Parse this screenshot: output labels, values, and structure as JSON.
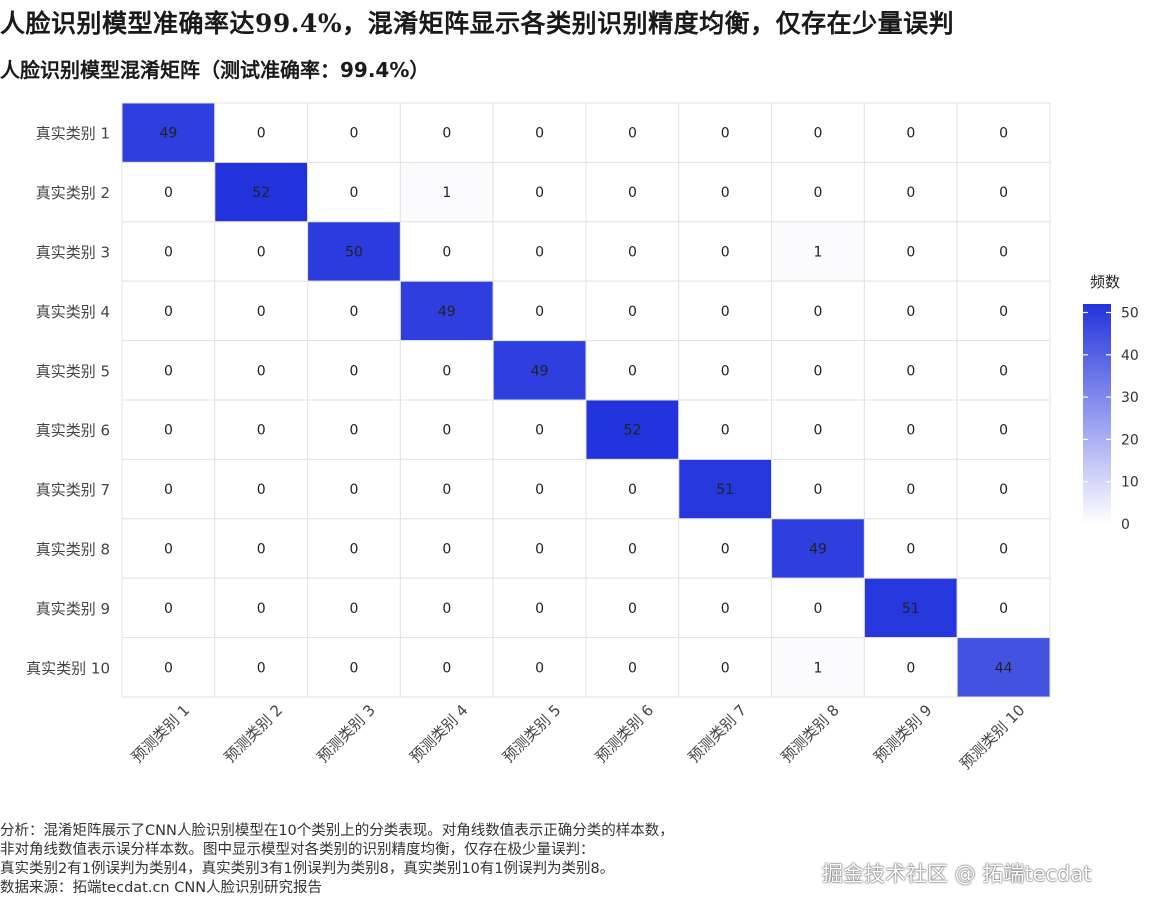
{
  "headline": "人脸识别模型准确率达99.4%，混淆矩阵显示各类别识别精度均衡，仅存在少量误判",
  "chart_data": {
    "type": "heatmap",
    "title": "人脸识别模型混淆矩阵（测试准确率：99.4%）",
    "row_labels": [
      "真实类别 1",
      "真实类别 2",
      "真实类别 3",
      "真实类别 4",
      "真实类别 5",
      "真实类别 6",
      "真实类别 7",
      "真实类别 8",
      "真实类别 9",
      "真实类别 10"
    ],
    "col_labels": [
      "预测类别 1",
      "预测类别 2",
      "预测类别 3",
      "预测类别 4",
      "预测类别 5",
      "预测类别 6",
      "预测类别 7",
      "预测类别 8",
      "预测类别 9",
      "预测类别 10"
    ],
    "matrix": [
      [
        49,
        0,
        0,
        0,
        0,
        0,
        0,
        0,
        0,
        0
      ],
      [
        0,
        52,
        0,
        1,
        0,
        0,
        0,
        0,
        0,
        0
      ],
      [
        0,
        0,
        50,
        0,
        0,
        0,
        0,
        1,
        0,
        0
      ],
      [
        0,
        0,
        0,
        49,
        0,
        0,
        0,
        0,
        0,
        0
      ],
      [
        0,
        0,
        0,
        0,
        49,
        0,
        0,
        0,
        0,
        0
      ],
      [
        0,
        0,
        0,
        0,
        0,
        52,
        0,
        0,
        0,
        0
      ],
      [
        0,
        0,
        0,
        0,
        0,
        0,
        51,
        0,
        0,
        0
      ],
      [
        0,
        0,
        0,
        0,
        0,
        0,
        0,
        49,
        0,
        0
      ],
      [
        0,
        0,
        0,
        0,
        0,
        0,
        0,
        0,
        51,
        0
      ],
      [
        0,
        0,
        0,
        0,
        0,
        0,
        0,
        1,
        0,
        44
      ]
    ],
    "legend": {
      "title": "频数",
      "ticks": [
        0,
        10,
        20,
        30,
        40,
        50
      ],
      "range": [
        0,
        52
      ],
      "color_low": "#ffffff",
      "color_high": "#2233dd"
    },
    "grid": true
  },
  "analysis": [
    "分析：混淆矩阵展示了CNN人脸识别模型在10个类别上的分类表现。对角线数值表示正确分类的样本数，",
    "非对角线数值表示误分样本数。图中显示模型对各类别的识别精度均衡，仅存在极少量误判：",
    "真实类别2有1例误判为类别4，真实类别3有1例误判为类别8，真实类别10有1例误判为类别8。",
    "数据来源：拓端tecdat.cn CNN人脸识别研究报告"
  ],
  "watermark": "掘金技术社区 @ 拓端tecdat"
}
